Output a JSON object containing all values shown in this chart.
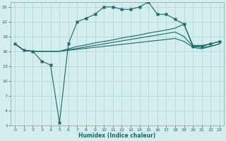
{
  "xlabel": "Humidex (Indice chaleur)",
  "bg_color": "#d4eeee",
  "grid_color": "#aad4d4",
  "line_color": "#1a6868",
  "xlim": [
    -0.5,
    23.5
  ],
  "ylim": [
    1,
    26
  ],
  "yticks": [
    1,
    4,
    7,
    10,
    13,
    16,
    19,
    22,
    25
  ],
  "xticks": [
    0,
    1,
    2,
    3,
    4,
    5,
    6,
    7,
    8,
    9,
    10,
    11,
    12,
    13,
    14,
    15,
    16,
    17,
    18,
    19,
    20,
    21,
    22,
    23
  ],
  "line_main_x": [
    0,
    1,
    2,
    3,
    4,
    5,
    6,
    7,
    8,
    9,
    10,
    11,
    12,
    13,
    14,
    15,
    16,
    17,
    18,
    19,
    20,
    21,
    22,
    23
  ],
  "line_main_y": [
    17.5,
    16.2,
    16.0,
    14.0,
    13.2,
    1.5,
    17.5,
    22.0,
    22.7,
    23.5,
    25.0,
    25.0,
    24.5,
    24.5,
    25.0,
    26.0,
    23.5,
    23.5,
    22.5,
    21.5,
    17.0,
    17.0,
    17.5,
    18.0
  ],
  "line_a_x": [
    0,
    1,
    2,
    3,
    4,
    5,
    6,
    7,
    8,
    9,
    10,
    11,
    12,
    13,
    14,
    15,
    16,
    17,
    18,
    19,
    20,
    21,
    22,
    23
  ],
  "line_a_y": [
    17.5,
    16.2,
    16.0,
    16.0,
    16.0,
    16.0,
    16.5,
    17.0,
    17.3,
    17.7,
    18.0,
    18.3,
    18.7,
    19.0,
    19.3,
    19.7,
    20.0,
    20.3,
    20.7,
    21.5,
    17.2,
    17.2,
    17.5,
    18.0
  ],
  "line_b_x": [
    0,
    1,
    2,
    3,
    4,
    5,
    6,
    7,
    8,
    9,
    10,
    11,
    12,
    13,
    14,
    15,
    16,
    17,
    18,
    19,
    20,
    21,
    22,
    23
  ],
  "line_b_y": [
    17.5,
    16.2,
    16.0,
    16.0,
    16.0,
    16.0,
    16.3,
    16.6,
    16.9,
    17.2,
    17.5,
    17.8,
    18.1,
    18.4,
    18.7,
    19.0,
    19.3,
    19.6,
    19.9,
    19.0,
    17.0,
    16.8,
    17.0,
    17.5
  ],
  "line_c_x": [
    0,
    1,
    2,
    3,
    4,
    5,
    6,
    7,
    8,
    9,
    10,
    11,
    12,
    13,
    14,
    15,
    16,
    17,
    18,
    19,
    20,
    21,
    22,
    23
  ],
  "line_c_y": [
    17.5,
    16.2,
    16.0,
    16.0,
    16.0,
    16.0,
    16.2,
    16.4,
    16.6,
    16.8,
    17.0,
    17.2,
    17.4,
    17.6,
    17.8,
    18.0,
    18.2,
    18.4,
    18.6,
    18.0,
    16.8,
    16.5,
    17.0,
    17.5
  ],
  "marker_x": [
    0,
    1,
    2,
    3,
    4,
    5,
    6,
    7,
    8,
    9,
    10,
    11,
    12,
    13,
    14,
    15,
    16,
    17,
    18,
    19,
    20,
    21,
    22,
    23
  ],
  "marker_y": [
    17.5,
    16.2,
    16.0,
    14.0,
    13.2,
    1.5,
    17.5,
    22.0,
    22.7,
    23.5,
    25.0,
    25.0,
    24.5,
    24.5,
    25.0,
    26.0,
    23.5,
    23.5,
    22.5,
    21.5,
    17.0,
    17.0,
    17.5,
    18.0
  ]
}
